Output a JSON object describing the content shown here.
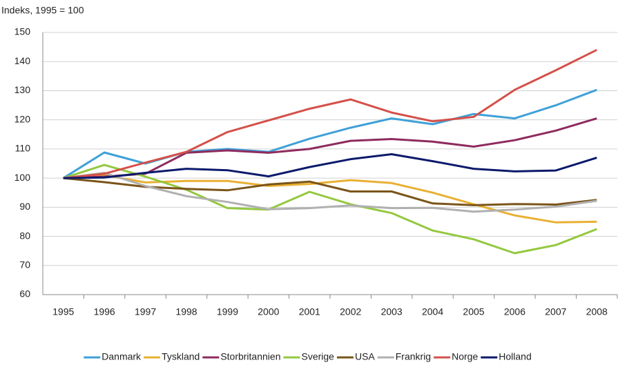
{
  "chart_data": {
    "type": "line",
    "y_label": "Indeks, 1995 = 100",
    "categories": [
      "1995",
      "1996",
      "1997",
      "1998",
      "1999",
      "2000",
      "2001",
      "2002",
      "2003",
      "2004",
      "2005",
      "2006",
      "2007",
      "2008"
    ],
    "series": [
      {
        "name": "Danmark",
        "color": "#3fa0d8",
        "values": [
          100,
          108.8,
          105,
          109,
          110,
          109,
          113.5,
          117.3,
          120.5,
          118.5,
          122,
          120.5,
          125,
          130.3
        ]
      },
      {
        "name": "Tyskland",
        "color": "#e8b032",
        "values": [
          100,
          101,
          98.5,
          99,
          99,
          97.3,
          98,
          99.3,
          98.3,
          95,
          91,
          87.2,
          84.8,
          85
        ]
      },
      {
        "name": "Storbritannien",
        "color": "#8e2b5e",
        "values": [
          100,
          100.5,
          101.5,
          108.7,
          109.5,
          108.7,
          110,
          112.8,
          113.4,
          112.5,
          110.8,
          113,
          116.3,
          120.5
        ]
      },
      {
        "name": "Sverige",
        "color": "#93c83e",
        "values": [
          100,
          104.5,
          100.5,
          96,
          89.7,
          89.2,
          95.3,
          91,
          88,
          82,
          79,
          74.2,
          77,
          82.5
        ]
      },
      {
        "name": "USA",
        "color": "#7a5419",
        "values": [
          100,
          98.6,
          97,
          96.3,
          95.8,
          97.8,
          98.8,
          95.4,
          95.4,
          91.3,
          90.7,
          91.1,
          90.9,
          92.5
        ]
      },
      {
        "name": "Frankrig",
        "color": "#b0b0b0",
        "values": [
          100,
          101.8,
          97.3,
          93.8,
          91.8,
          89.3,
          89.7,
          90.6,
          89.7,
          89.8,
          88.5,
          89.2,
          90.2,
          92.2
        ]
      },
      {
        "name": "Norge",
        "color": "#d4504a",
        "values": [
          100,
          101.5,
          105.3,
          109,
          115.8,
          119.8,
          123.8,
          127,
          122.5,
          119.5,
          121,
          130.3,
          137,
          144
        ]
      },
      {
        "name": "Holland",
        "color": "#0b1a6b",
        "values": [
          100,
          100.2,
          101.8,
          103.2,
          102.7,
          100.6,
          103.8,
          106.5,
          108.2,
          105.8,
          103.2,
          102.3,
          102.6,
          107
        ]
      }
    ],
    "ylim": [
      60,
      150
    ],
    "yticks": [
      60,
      70,
      80,
      90,
      100,
      110,
      120,
      130,
      140,
      150
    ],
    "grid": true,
    "legend": "bottom"
  }
}
